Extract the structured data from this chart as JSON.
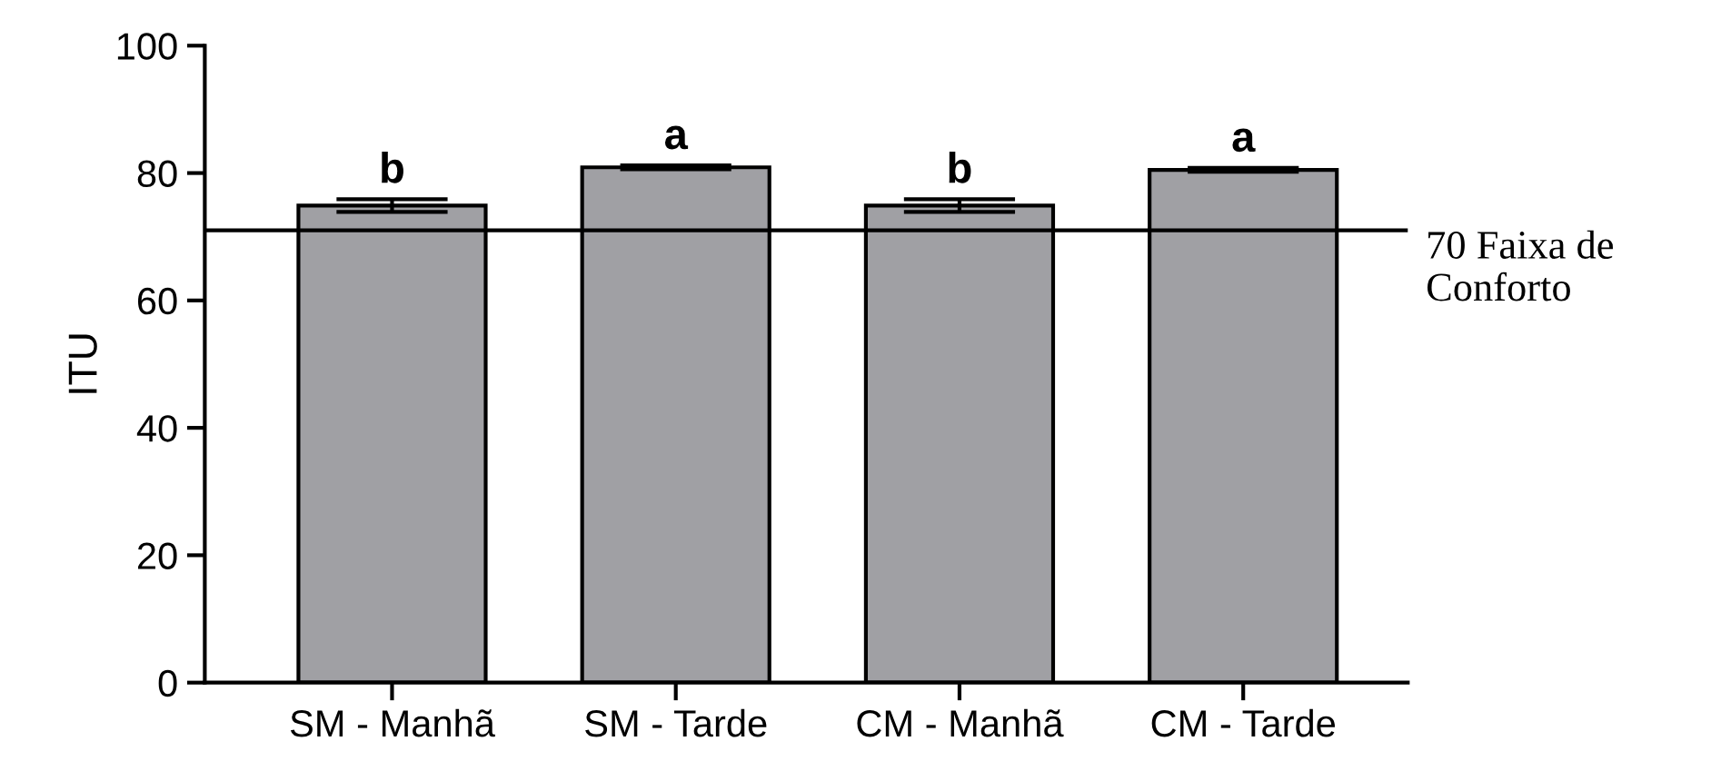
{
  "chart_data": {
    "type": "bar",
    "ylabel": "ITU",
    "categories": [
      "SM - Manhã",
      "SM - Tarde",
      "CM - Manhã",
      "CM - Tarde"
    ],
    "values": [
      74.9,
      80.9,
      74.9,
      80.5
    ],
    "errors": [
      1,
      0.3,
      1,
      0.3
    ],
    "color": "#a0a0a4",
    "ylim": [
      0,
      100
    ],
    "yticks": [
      0,
      20,
      40,
      60,
      80,
      100
    ],
    "ref_lines": [
      {
        "axis": "y",
        "value": 71,
        "label": "70 Faixa de Conforto",
        "color": "#000000"
      }
    ],
    "annotations": [
      {
        "text": "b",
        "x": "SM - Manhã",
        "y": 75.9
      },
      {
        "text": "a",
        "x": "SM - Tarde",
        "y": 81.2
      },
      {
        "text": "b",
        "x": "CM - Manhã",
        "y": 75.9
      },
      {
        "text": "a",
        "x": "CM - Tarde",
        "y": 80.8
      }
    ],
    "grid": false,
    "legend": false
  }
}
